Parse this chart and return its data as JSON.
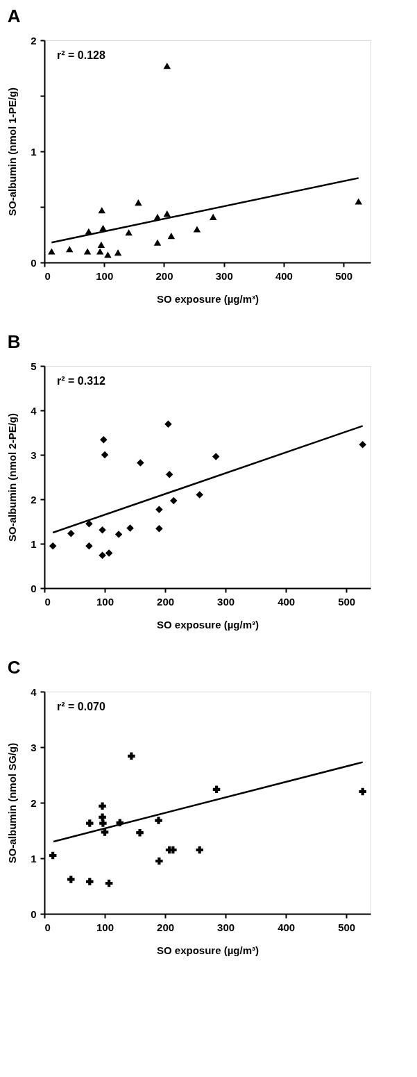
{
  "chart_data": [
    {
      "type": "scatter",
      "title": "A",
      "xlabel": "SO exposure (µg/m³)",
      "ylabel": "SO-albumin (nmol 1-PE/g)",
      "annotations": [
        "r² = 0.128"
      ],
      "grid": false,
      "xlim": [
        0,
        545
      ],
      "xticks": [
        0,
        100,
        200,
        300,
        400,
        500
      ],
      "ylim": [
        0,
        2
      ],
      "yticks": [
        0,
        {
          "value": 0.5,
          "label": null
        },
        1,
        {
          "value": 1.5,
          "label": null
        },
        2
      ],
      "series": [
        {
          "marker": "triangle",
          "color": "#000000",
          "x": [
            12,
            42,
            72,
            74,
            93,
            95,
            96,
            98,
            106,
            123,
            141,
            157,
            189,
            189,
            205,
            205,
            212,
            255,
            282,
            525
          ],
          "values": [
            0.1,
            0.12,
            0.1,
            0.28,
            0.1,
            0.16,
            0.47,
            0.31,
            0.07,
            0.09,
            0.27,
            0.54,
            0.41,
            0.18,
            1.77,
            0.44,
            0.24,
            0.3,
            0.41,
            0.55
          ]
        },
        {
          "type": "line",
          "color": "#000000",
          "x": [
            12,
            525
          ],
          "values": [
            0.18,
            0.76
          ]
        }
      ]
    },
    {
      "type": "scatter",
      "title": "B",
      "xlabel": "SO exposure (µg/m³)",
      "ylabel": "SO-albumin (nmol 2-PE/g)",
      "annotations": [
        "r² = 0.312"
      ],
      "grid": false,
      "xlim": [
        0,
        540
      ],
      "xticks": [
        0,
        100,
        200,
        300,
        400,
        500
      ],
      "ylim": [
        0,
        5
      ],
      "yticks": [
        0,
        1,
        2,
        3,
        4,
        5
      ],
      "series": [
        {
          "marker": "diamond",
          "color": "#000000",
          "x": [
            14,
            44,
            74,
            74,
            96,
            96,
            98,
            100,
            107,
            123,
            142,
            159,
            190,
            190,
            205,
            207,
            214,
            257,
            284,
            527
          ],
          "values": [
            0.95,
            1.23,
            1.45,
            0.95,
            1.31,
            0.74,
            3.34,
            3.0,
            0.79,
            1.21,
            1.35,
            2.82,
            1.77,
            1.34,
            3.69,
            2.56,
            1.97,
            2.1,
            2.96,
            3.23
          ]
        },
        {
          "type": "line",
          "color": "#000000",
          "x": [
            14,
            527
          ],
          "values": [
            1.25,
            3.65
          ]
        }
      ]
    },
    {
      "type": "scatter",
      "title": "C",
      "xlabel": "SO exposure (µg/m³)",
      "ylabel": "SO-albumin (nmol SG/g)",
      "annotations": [
        "r² = 0.070"
      ],
      "grid": false,
      "xlim": [
        0,
        540
      ],
      "xticks": [
        0,
        100,
        200,
        300,
        400,
        500
      ],
      "ylim": [
        0,
        4
      ],
      "yticks": [
        0,
        1,
        2,
        3,
        4
      ],
      "series": [
        {
          "marker": "cross",
          "color": "#000000",
          "x": [
            14,
            44,
            75,
            75,
            96,
            96,
            97,
            100,
            107,
            125,
            144,
            158,
            189,
            190,
            207,
            213,
            257,
            285,
            527
          ],
          "values": [
            1.05,
            0.62,
            1.63,
            0.58,
            1.94,
            1.74,
            1.63,
            1.47,
            0.55,
            1.64,
            2.84,
            1.46,
            1.68,
            0.95,
            1.15,
            1.15,
            1.15,
            2.24,
            2.2
          ]
        },
        {
          "type": "line",
          "color": "#000000",
          "x": [
            15,
            527
          ],
          "values": [
            1.3,
            2.73
          ]
        }
      ]
    }
  ]
}
